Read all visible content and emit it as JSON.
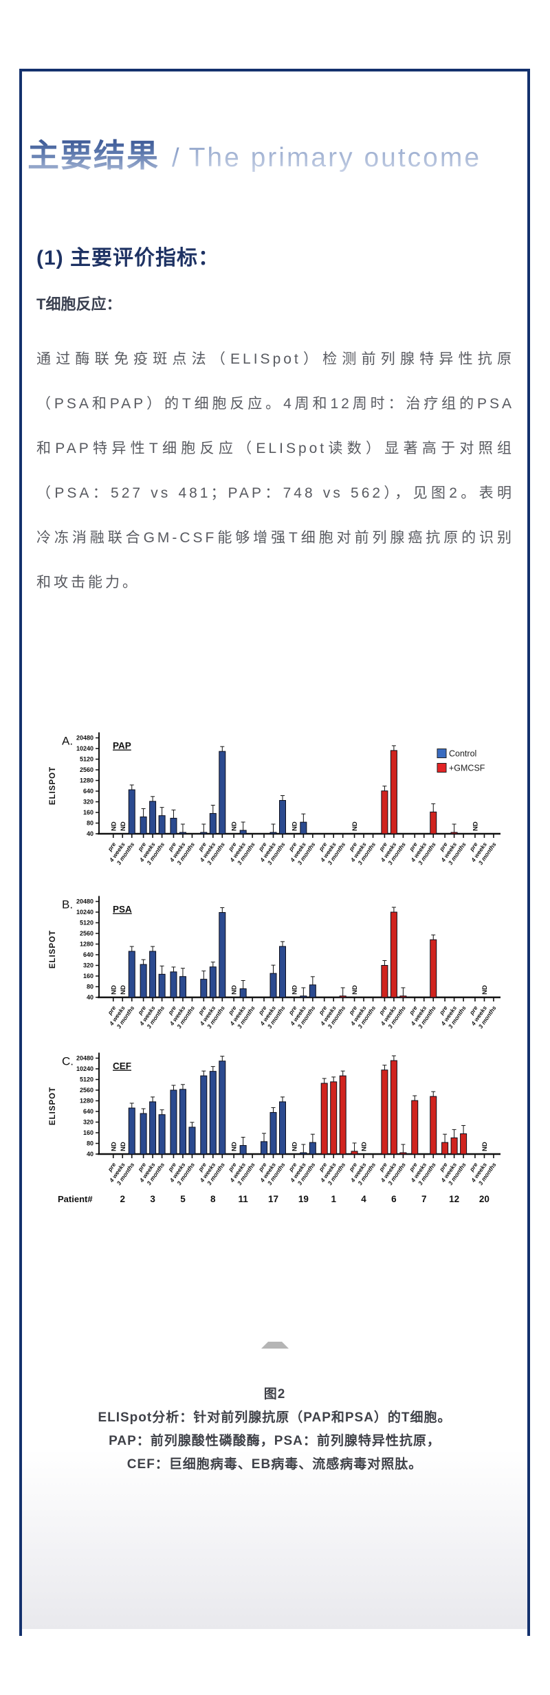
{
  "header": {
    "title_cn": "主要结果",
    "separator": "/",
    "title_en": "The primary outcome"
  },
  "section": {
    "heading": "(1) 主要评价指标：",
    "subheading": "T细胞反应：",
    "paragraph": "通过酶联免疫斑点法（ELISpot）检测前列腺特异性抗原（PSA和PAP）的T细胞反应。4周和12周时：治疗组的PSA和PAP特异性T细胞反应（ELISpot读数）显著高于对照组（PSA：527 vs 481；PAP：748 vs 562），见图2。表明冷冻消融联合GM-CSF能够增强T细胞对前列腺癌抗原的识别和攻击能力。"
  },
  "figure": {
    "collapse_icon": "up-triangle",
    "caption_lines": [
      "图2",
      "ELISpot分析：针对前列腺抗原（PAP和PSA）的T细胞。",
      "PAP：前列腺酸性磷酸酶，PSA：前列腺特异性抗原，",
      "CEF：巨细胞病毒、EB病毒、流感病毒对照肽。"
    ]
  },
  "chart_data": {
    "type": "bar",
    "scale": "log2",
    "ylabel": "ELISPOT",
    "ylim": [
      40,
      20480
    ],
    "yticks": [
      40,
      80,
      160,
      320,
      640,
      1280,
      2560,
      5120,
      10240,
      20480
    ],
    "grid": false,
    "legend_position": "top-right-of-panel-A",
    "time_points": [
      "pre",
      "4 weeks",
      "3 months"
    ],
    "patient_axis_label": "Patient#",
    "patients": [
      "2",
      "3",
      "5",
      "8",
      "11",
      "17",
      "19",
      "1",
      "4",
      "6",
      "7",
      "12",
      "20"
    ],
    "groups": {
      "control_patients": [
        "2",
        "3",
        "5",
        "8",
        "11",
        "17",
        "19"
      ],
      "gmcsf_patients": [
        "1",
        "4",
        "6",
        "7",
        "12",
        "20"
      ]
    },
    "legend": [
      {
        "label": "Control",
        "color": "#3a6cc0"
      },
      {
        "label": "+GMCSF",
        "color": "#e32426"
      }
    ],
    "bar_colors": {
      "control": "#2b4a8f",
      "gmcsf": "#d0241f"
    },
    "nd_label": "ND",
    "panels": [
      {
        "label": "A.",
        "title": "PAP",
        "values": [
          [
            "ND",
            "ND",
            700
          ],
          [
            120,
            330,
            130
          ],
          [
            110,
            42,
            null
          ],
          [
            42,
            150,
            8500
          ],
          [
            "ND",
            50,
            null
          ],
          [
            null,
            42,
            350
          ],
          [
            "ND",
            85,
            null
          ],
          [
            null,
            null,
            null
          ],
          [
            "ND",
            null,
            null
          ],
          [
            650,
            9000,
            null
          ],
          [
            null,
            null,
            165
          ],
          [
            null,
            42,
            null
          ],
          [
            "ND",
            null,
            null
          ]
        ]
      },
      {
        "label": "B.",
        "title": "PSA",
        "values": [
          [
            "ND",
            "ND",
            800
          ],
          [
            340,
            800,
            180
          ],
          [
            210,
            155,
            null
          ],
          [
            130,
            290,
            10000
          ],
          [
            "ND",
            70,
            null
          ],
          [
            null,
            190,
            1100
          ],
          [
            "ND",
            42,
            90
          ],
          [
            null,
            null,
            42
          ],
          [
            "ND",
            null,
            null
          ],
          [
            320,
            10240,
            42
          ],
          [
            null,
            null,
            1700
          ],
          [
            null,
            null,
            null
          ],
          [
            null,
            "ND",
            null
          ]
        ]
      },
      {
        "label": "C.",
        "title": "CEF",
        "values": [
          [
            "ND",
            "ND",
            800
          ],
          [
            560,
            1200,
            520
          ],
          [
            2560,
            2700,
            230
          ],
          [
            6500,
            8700,
            17000
          ],
          [
            "ND",
            70,
            null
          ],
          [
            90,
            600,
            1200
          ],
          [
            "ND",
            42,
            85
          ],
          [
            4000,
            4400,
            6500
          ],
          [
            48,
            "ND",
            null
          ],
          [
            9500,
            17500,
            42
          ],
          [
            1300,
            null,
            1700
          ],
          [
            85,
            115,
            150
          ],
          [
            null,
            "ND",
            null
          ]
        ]
      }
    ]
  }
}
